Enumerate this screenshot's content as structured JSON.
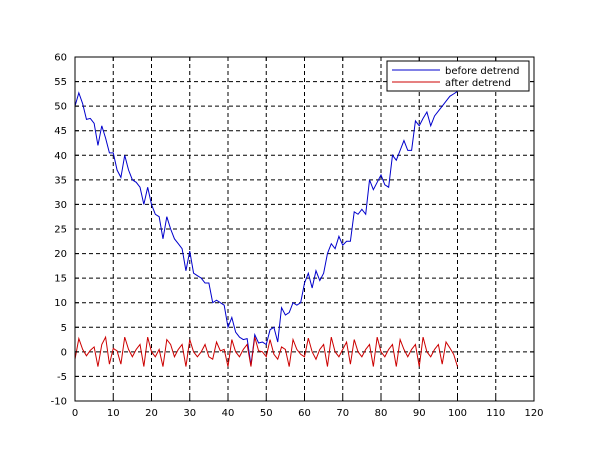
{
  "chart_data": {
    "type": "line",
    "title": "",
    "xlabel": "",
    "ylabel": "",
    "xlim": [
      0,
      120
    ],
    "ylim": [
      -10,
      60
    ],
    "x_ticks": [
      "0",
      "10",
      "20",
      "30",
      "40",
      "50",
      "60",
      "70",
      "80",
      "90",
      "100",
      "110",
      "120"
    ],
    "y_ticks": [
      "-10",
      "-5",
      "0",
      "5",
      "10",
      "15",
      "20",
      "25",
      "30",
      "35",
      "40",
      "45",
      "50",
      "55",
      "60"
    ],
    "grid": true,
    "legend_position": "top-right",
    "series": [
      {
        "name": "before detrend",
        "color": "#0000cc",
        "x": [
          0,
          1,
          2,
          3,
          4,
          5,
          6,
          7,
          8,
          9,
          10,
          11,
          12,
          13,
          14,
          15,
          16,
          17,
          18,
          19,
          20,
          21,
          22,
          23,
          24,
          25,
          26,
          27,
          28,
          29,
          30,
          31,
          32,
          33,
          34,
          35,
          36,
          37,
          38,
          39,
          40,
          41,
          42,
          43,
          44,
          45,
          46,
          47,
          48,
          49,
          50,
          51,
          52,
          53,
          54,
          55,
          56,
          57,
          58,
          59,
          60,
          61,
          62,
          63,
          64,
          65,
          66,
          67,
          68,
          69,
          70,
          71,
          72,
          73,
          74,
          75,
          76,
          77,
          78,
          79,
          80,
          81,
          82,
          83,
          84,
          85,
          86,
          87,
          88,
          89,
          90,
          91,
          92,
          93,
          94,
          95,
          96,
          97,
          98,
          99,
          100
        ],
        "y": [
          50,
          52.7,
          50.5,
          47.3,
          47.5,
          46.5,
          42,
          46,
          43.5,
          40.5,
          40.5,
          37,
          35.5,
          40,
          37,
          35,
          34.5,
          33.5,
          30,
          33.5,
          30,
          28,
          27.5,
          23,
          27.5,
          25,
          23,
          22,
          21,
          16.5,
          20.5,
          16,
          15.5,
          15,
          14,
          14,
          10,
          10.5,
          10,
          9.5,
          5,
          7,
          4,
          3,
          2.5,
          2.7,
          -2.7,
          3.5,
          1.8,
          2,
          1.5,
          4.5,
          5,
          2,
          9,
          7.5,
          8,
          10,
          9.5,
          10,
          14,
          16,
          13,
          16.5,
          14.5,
          16,
          20,
          22,
          21,
          23.5,
          21.7,
          22.5,
          22.5,
          28.5,
          28,
          29,
          28,
          35,
          33,
          34.5,
          36,
          34,
          33.5,
          40,
          39,
          41,
          43,
          41,
          41,
          47,
          46,
          47.5,
          48.8,
          46,
          48,
          49,
          50,
          51,
          52,
          52.5,
          53
        ]
      },
      {
        "name": "after detrend",
        "color": "#cc0000",
        "x": [
          0,
          1,
          2,
          3,
          4,
          5,
          6,
          7,
          8,
          9,
          10,
          11,
          12,
          13,
          14,
          15,
          16,
          17,
          18,
          19,
          20,
          21,
          22,
          23,
          24,
          25,
          26,
          27,
          28,
          29,
          30,
          31,
          32,
          33,
          34,
          35,
          36,
          37,
          38,
          39,
          40,
          41,
          42,
          43,
          44,
          45,
          46,
          47,
          48,
          49,
          50,
          51,
          52,
          53,
          54,
          55,
          56,
          57,
          58,
          59,
          60,
          61,
          62,
          63,
          64,
          65,
          66,
          67,
          68,
          69,
          70,
          71,
          72,
          73,
          74,
          75,
          76,
          77,
          78,
          79,
          80,
          81,
          82,
          83,
          84,
          85,
          86,
          87,
          88,
          89,
          90,
          91,
          92,
          93,
          94,
          95,
          96,
          97,
          98,
          99,
          100
        ],
        "y": [
          -1.5,
          2.7,
          0.5,
          -0.8,
          0.3,
          1,
          -3,
          1.5,
          3,
          -2.5,
          0.7,
          0.2,
          -2.5,
          3,
          0.5,
          -1,
          0.5,
          1.5,
          -3,
          3,
          0,
          -1,
          0.5,
          -3,
          2.5,
          1.5,
          -1,
          0.5,
          1.5,
          -3,
          2.5,
          0,
          -1,
          0,
          1.5,
          -1,
          -1.5,
          2,
          0.2,
          0.5,
          -3,
          2.5,
          0,
          -1,
          0.5,
          1.5,
          -3,
          3,
          0.2,
          0,
          -1,
          2.5,
          -0.5,
          -1.5,
          1,
          0.5,
          -3,
          2.5,
          0.5,
          -0.5,
          -1,
          2.8,
          0,
          -1.5,
          0.5,
          1.5,
          -3,
          3,
          0,
          -1,
          0.5,
          2,
          -2.5,
          2.5,
          0,
          -1,
          0.5,
          1.5,
          -3,
          3,
          0,
          -1,
          0.5,
          1.5,
          -3,
          2.5,
          0.5,
          -1,
          0.5,
          1.5,
          -3,
          3,
          0,
          -1,
          0.5,
          1.5,
          -2.5,
          2,
          0.8,
          -0.5,
          -3
        ]
      }
    ]
  }
}
